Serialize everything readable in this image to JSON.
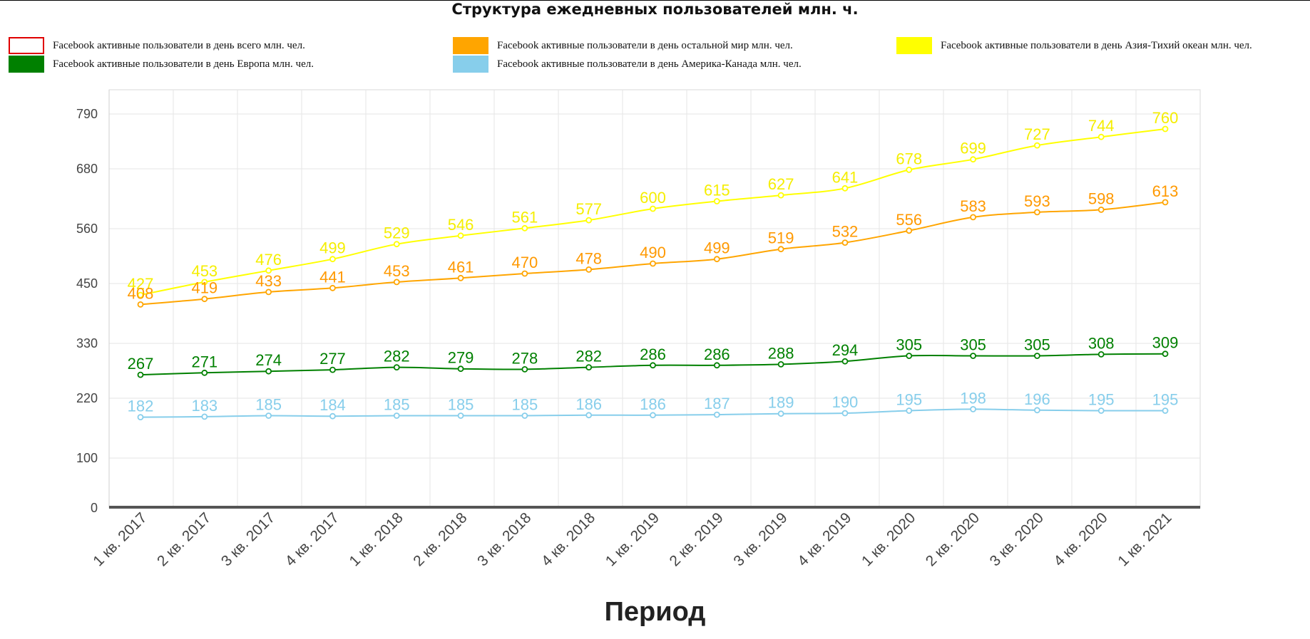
{
  "title": "Структура ежедневных пользователей млн. ч.",
  "xaxis_title": "Период",
  "legend": [
    {
      "label": "Facebook активные пользователи в день всего млн. чел.",
      "color": "#e00000",
      "outline": true
    },
    {
      "label": "Facebook активные пользователи в день остальной мир млн. чел.",
      "color": "#ffa500",
      "outline": false
    },
    {
      "label": "Facebook активные пользователи в день Азия-Тихий океан млн. чел.",
      "color": "#ffff00",
      "outline": false
    },
    {
      "label": "Facebook активные пользователи в день Европа млн. чел.",
      "color": "#008000",
      "outline": false
    },
    {
      "label": "Facebook активные пользователи в день Америка-Канада млн. чел.",
      "color": "#87ceeb",
      "outline": false
    }
  ],
  "chart_data": {
    "type": "line",
    "title": "Структура ежедневных пользователей млн. ч.",
    "xlabel": "Период",
    "ylabel": "",
    "ylim": [
      0,
      850
    ],
    "yticks": [
      0,
      100,
      220,
      330,
      450,
      560,
      680,
      790
    ],
    "grid": true,
    "legend_position": "top",
    "categories": [
      "1 кв. 2017",
      "2 кв. 2017",
      "3 кв. 2017",
      "4 кв. 2017",
      "1 кв. 2018",
      "2 кв. 2018",
      "3 кв. 2018",
      "4 кв. 2018",
      "1 кв. 2019",
      "2 кв. 2019",
      "3 кв. 2019",
      "4 кв. 2019",
      "1 кв. 2020",
      "2 кв. 2020",
      "3 кв. 2020",
      "4 кв. 2020",
      "1 кв. 2021"
    ],
    "series": [
      {
        "name": "Facebook активные пользователи в день Азия-Тихий океан млн. чел.",
        "color": "#ffff00",
        "label_color": "#f5ee00",
        "values": [
          427,
          453,
          476,
          499,
          529,
          546,
          561,
          577,
          600,
          615,
          627,
          641,
          678,
          699,
          727,
          744,
          760
        ]
      },
      {
        "name": "Facebook активные пользователи в день остальной мир млн. чел.",
        "color": "#ffa500",
        "label_color": "#ff9900",
        "values": [
          408,
          419,
          433,
          441,
          453,
          461,
          470,
          478,
          490,
          499,
          519,
          532,
          556,
          583,
          593,
          598,
          613
        ]
      },
      {
        "name": "Facebook активные пользователи в день Европа млн. чел.",
        "color": "#008000",
        "label_color": "#008000",
        "values": [
          267,
          271,
          274,
          277,
          282,
          279,
          278,
          282,
          286,
          286,
          288,
          294,
          305,
          305,
          305,
          308,
          309
        ]
      },
      {
        "name": "Facebook активные пользователи в день Америка-Канада млн. чел.",
        "color": "#87ceeb",
        "label_color": "#87ceeb",
        "values": [
          182,
          183,
          185,
          184,
          185,
          185,
          185,
          186,
          186,
          187,
          189,
          190,
          195,
          198,
          196,
          195,
          195
        ]
      }
    ]
  }
}
